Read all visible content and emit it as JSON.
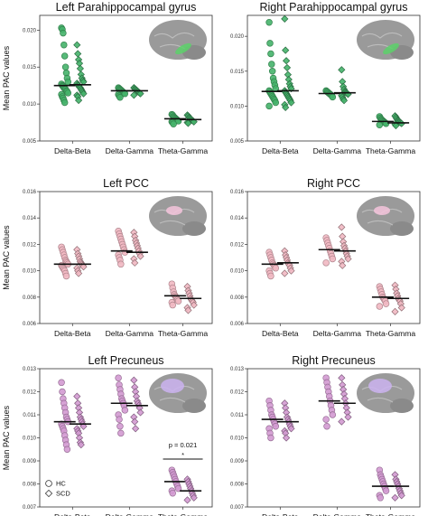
{
  "chart_data": [
    {
      "type": "scatter",
      "title": "Left Parahippocampal gyrus",
      "ylabel": "Mean PAC values",
      "ylim": [
        0.005,
        0.022
      ],
      "yticks": [
        "0.005",
        "0.010",
        "0.015",
        "0.020"
      ],
      "yticks_values": [
        0.005,
        0.01,
        0.015,
        0.02
      ],
      "categories": [
        "Delta-Beta",
        "Delta-Gamma",
        "Theta-Gamma"
      ],
      "color": "#45b36a",
      "brain_highlight": "#5cd16a",
      "series": [
        {
          "name": "HC",
          "marker": "circle",
          "means": [
            0.0125,
            0.0118,
            0.008
          ],
          "points": [
            [
              0.0203,
              0.0201,
              0.0196,
              0.018,
              0.0165,
              0.015,
              0.0142,
              0.0135,
              0.013,
              0.0127,
              0.0125,
              0.0124,
              0.0122,
              0.0121,
              0.012,
              0.0118,
              0.0117,
              0.0115,
              0.0113,
              0.011,
              0.0108,
              0.0105,
              0.0102
            ],
            [
              0.0122,
              0.0121,
              0.012,
              0.0119,
              0.0118,
              0.0117,
              0.0116,
              0.0115,
              0.0114,
              0.0113,
              0.0111,
              0.0109
            ],
            [
              0.0086,
              0.0085,
              0.0083,
              0.0082,
              0.0081,
              0.008,
              0.0079,
              0.0078,
              0.0077,
              0.0076,
              0.0075,
              0.0073
            ]
          ]
        },
        {
          "name": "SCD",
          "marker": "diamond",
          "means": [
            0.0126,
            0.0118,
            0.0079
          ],
          "points": [
            [
              0.018,
              0.0168,
              0.016,
              0.0155,
              0.0148,
              0.014,
              0.0135,
              0.0132,
              0.013,
              0.0128,
              0.0126,
              0.0125,
              0.0123,
              0.0122,
              0.012,
              0.0118,
              0.0116,
              0.0114,
              0.0112,
              0.011,
              0.0105
            ],
            [
              0.0122,
              0.0121,
              0.012,
              0.0119,
              0.0118,
              0.0117,
              0.0116,
              0.0115,
              0.0114,
              0.0112
            ],
            [
              0.0085,
              0.0084,
              0.0082,
              0.0081,
              0.008,
              0.0079,
              0.0078,
              0.0077,
              0.0076,
              0.0075,
              0.0074
            ]
          ]
        }
      ]
    },
    {
      "type": "scatter",
      "title": "Right Parahippocampal gyrus",
      "ylabel": "",
      "ylim": [
        0.005,
        0.023
      ],
      "yticks": [
        "0.005",
        "0.010",
        "0.015",
        "0.020"
      ],
      "yticks_values": [
        0.005,
        0.01,
        0.015,
        0.02
      ],
      "categories": [
        "Delta-Beta",
        "Delta-Gamma",
        "Theta-Gamma"
      ],
      "color": "#45b36a",
      "brain_highlight": "#5cd16a",
      "series": [
        {
          "name": "HC",
          "marker": "circle",
          "means": [
            0.0121,
            0.0118,
            0.0078
          ],
          "points": [
            [
              0.022,
              0.019,
              0.0175,
              0.016,
              0.015,
              0.014,
              0.0135,
              0.013,
              0.0125,
              0.0122,
              0.012,
              0.0118,
              0.0116,
              0.0114,
              0.0112,
              0.011,
              0.0108,
              0.0105,
              0.01
            ],
            [
              0.0122,
              0.0121,
              0.012,
              0.0119,
              0.0118,
              0.0117,
              0.0116,
              0.0115,
              0.0113
            ],
            [
              0.0085,
              0.0083,
              0.0081,
              0.008,
              0.0079,
              0.0078,
              0.0077,
              0.0076,
              0.0075,
              0.0073
            ]
          ]
        },
        {
          "name": "SCD",
          "marker": "diamond",
          "means": [
            0.0122,
            0.0119,
            0.0076
          ],
          "points": [
            [
              0.0225,
              0.018,
              0.0165,
              0.0155,
              0.0145,
              0.0138,
              0.0132,
              0.0128,
              0.0125,
              0.0122,
              0.012,
              0.0118,
              0.0116,
              0.0114,
              0.0112,
              0.011,
              0.0108,
              0.0105,
              0.0102,
              0.0098
            ],
            [
              0.0152,
              0.0135,
              0.0128,
              0.0124,
              0.0121,
              0.012,
              0.0119,
              0.0118,
              0.0117,
              0.0115,
              0.0113,
              0.011,
              0.0108
            ],
            [
              0.0086,
              0.0084,
              0.0082,
              0.008,
              0.0079,
              0.0078,
              0.0077,
              0.0076,
              0.0075,
              0.0074,
              0.0072
            ]
          ]
        }
      ]
    },
    {
      "type": "scatter",
      "title": "Left PCC",
      "ylabel": "Mean PAC values",
      "ylim": [
        0.006,
        0.016
      ],
      "yticks": [
        "0.006",
        "0.008",
        "0.010",
        "0.012",
        "0.014",
        "0.016"
      ],
      "yticks_values": [
        0.006,
        0.008,
        0.01,
        0.012,
        0.014,
        0.016
      ],
      "categories": [
        "Delta-Beta",
        "Delta-Gamma",
        "Theta-Gamma"
      ],
      "color": "#f1b8c2",
      "brain_highlight": "#f4c4dc",
      "series": [
        {
          "name": "HC",
          "marker": "circle",
          "means": [
            0.0105,
            0.0115,
            0.0081
          ],
          "points": [
            [
              0.0118,
              0.0116,
              0.0114,
              0.0112,
              0.011,
              0.0108,
              0.0107,
              0.0106,
              0.0105,
              0.0104,
              0.0103,
              0.0102,
              0.0101,
              0.01,
              0.0098,
              0.0096
            ],
            [
              0.013,
              0.0128,
              0.0126,
              0.0124,
              0.0122,
              0.012,
              0.0118,
              0.0116,
              0.0114,
              0.0112,
              0.011,
              0.0108,
              0.0105
            ],
            [
              0.009,
              0.0087,
              0.0084,
              0.0082,
              0.0081,
              0.008,
              0.0079,
              0.0078,
              0.0077,
              0.0076,
              0.0074
            ]
          ]
        },
        {
          "name": "SCD",
          "marker": "diamond",
          "means": [
            0.0105,
            0.0114,
            0.0079
          ],
          "points": [
            [
              0.0116,
              0.0113,
              0.0111,
              0.0109,
              0.0107,
              0.0106,
              0.0105,
              0.0104,
              0.0103,
              0.0102,
              0.01,
              0.0098
            ],
            [
              0.0129,
              0.0126,
              0.0123,
              0.0121,
              0.0119,
              0.0117,
              0.0115,
              0.0113,
              0.0111,
              0.0109,
              0.0106
            ],
            [
              0.0088,
              0.0085,
              0.0083,
              0.0081,
              0.0079,
              0.0078,
              0.0077,
              0.0076,
              0.0074,
              0.0072,
              0.007
            ]
          ]
        }
      ]
    },
    {
      "type": "scatter",
      "title": "Right PCC",
      "ylabel": "",
      "ylim": [
        0.006,
        0.016
      ],
      "yticks": [
        "0.006",
        "0.008",
        "0.010",
        "0.012",
        "0.014",
        "0.016"
      ],
      "yticks_values": [
        0.006,
        0.008,
        0.01,
        0.012,
        0.014,
        0.016
      ],
      "categories": [
        "Delta-Beta",
        "Delta-Gamma",
        "Theta-Gamma"
      ],
      "color": "#f1b8c2",
      "brain_highlight": "#f4c4dc",
      "series": [
        {
          "name": "HC",
          "marker": "circle",
          "means": [
            0.0105,
            0.0116,
            0.008
          ],
          "points": [
            [
              0.0114,
              0.0112,
              0.011,
              0.0108,
              0.0106,
              0.0105,
              0.0104,
              0.0103,
              0.0102,
              0.01,
              0.0098,
              0.0096
            ],
            [
              0.0125,
              0.0123,
              0.0121,
              0.0119,
              0.0117,
              0.0115,
              0.0113,
              0.0111,
              0.0109,
              0.0106
            ],
            [
              0.0088,
              0.0086,
              0.0084,
              0.0082,
              0.008,
              0.0079,
              0.0078,
              0.0077,
              0.0075,
              0.0073
            ]
          ]
        },
        {
          "name": "SCD",
          "marker": "diamond",
          "means": [
            0.0106,
            0.0115,
            0.0079
          ],
          "points": [
            [
              0.0115,
              0.0112,
              0.011,
              0.0108,
              0.0106,
              0.0105,
              0.0104,
              0.0102,
              0.01,
              0.0098
            ],
            [
              0.0133,
              0.0126,
              0.0122,
              0.0119,
              0.0117,
              0.0115,
              0.0113,
              0.0111,
              0.0109,
              0.0107,
              0.0104
            ],
            [
              0.0089,
              0.0086,
              0.0083,
              0.0081,
              0.0079,
              0.0078,
              0.0077,
              0.0075,
              0.0072,
              0.0069
            ]
          ]
        }
      ]
    },
    {
      "type": "scatter",
      "title": "Left Precuneus",
      "ylabel": "Mean PAC values",
      "ylim": [
        0.007,
        0.013
      ],
      "yticks": [
        "0.007",
        "0.008",
        "0.009",
        "0.010",
        "0.011",
        "0.012",
        "0.013"
      ],
      "yticks_values": [
        0.007,
        0.008,
        0.009,
        0.01,
        0.011,
        0.012,
        0.013
      ],
      "categories": [
        "Delta-Beta",
        "Delta-Gamma",
        "Theta-Gamma"
      ],
      "color": "#d39ad1",
      "brain_highlight": "#cbb3f0",
      "annotation": {
        "pvalue": "p = 0.021",
        "star": "*",
        "category_index": 2
      },
      "legend": {
        "hc": "HC",
        "scd": "SCD"
      },
      "series": [
        {
          "name": "HC",
          "marker": "circle",
          "means": [
            0.0107,
            0.0115,
            0.0081
          ],
          "points": [
            [
              0.0124,
              0.012,
              0.0117,
              0.0115,
              0.0113,
              0.0111,
              0.0109,
              0.0108,
              0.0107,
              0.0106,
              0.0105,
              0.0104,
              0.0103,
              0.0101,
              0.0099,
              0.0097,
              0.0095
            ],
            [
              0.0126,
              0.0123,
              0.0121,
              0.0119,
              0.0117,
              0.0116,
              0.0115,
              0.0114,
              0.0112,
              0.011,
              0.0108,
              0.0105,
              0.0102
            ],
            [
              0.0086,
              0.0085,
              0.0084,
              0.0083,
              0.0082,
              0.0081,
              0.008,
              0.0079,
              0.0078,
              0.0077,
              0.0076
            ]
          ]
        },
        {
          "name": "SCD",
          "marker": "diamond",
          "means": [
            0.0106,
            0.0114,
            0.0077
          ],
          "points": [
            [
              0.0118,
              0.0115,
              0.0113,
              0.0111,
              0.0109,
              0.0108,
              0.0107,
              0.0106,
              0.0105,
              0.0104,
              0.0103,
              0.0102,
              0.01,
              0.0098,
              0.0097
            ],
            [
              0.0125,
              0.0122,
              0.012,
              0.0118,
              0.0116,
              0.0115,
              0.0114,
              0.0113,
              0.0111,
              0.0109,
              0.0107,
              0.0104
            ],
            [
              0.0082,
              0.0081,
              0.008,
              0.0079,
              0.0078,
              0.0077,
              0.0076,
              0.0075,
              0.0074,
              0.0073
            ]
          ]
        }
      ]
    },
    {
      "type": "scatter",
      "title": "Right Precuneus",
      "ylabel": "",
      "ylim": [
        0.007,
        0.013
      ],
      "yticks": [
        "0.007",
        "0.008",
        "0.009",
        "0.010",
        "0.011",
        "0.012",
        "0.013"
      ],
      "yticks_values": [
        0.007,
        0.008,
        0.009,
        0.01,
        0.011,
        0.012,
        0.013
      ],
      "categories": [
        "Delta-Beta",
        "Delta-Gamma",
        "Theta-Gamma"
      ],
      "color": "#d39ad1",
      "brain_highlight": "#cbb3f0",
      "series": [
        {
          "name": "HC",
          "marker": "circle",
          "means": [
            0.0108,
            0.0116,
            0.0079
          ],
          "points": [
            [
              0.0116,
              0.0114,
              0.0112,
              0.011,
              0.0109,
              0.0108,
              0.0107,
              0.0106,
              0.0105,
              0.0104,
              0.0102,
              0.01
            ],
            [
              0.0126,
              0.0124,
              0.0122,
              0.012,
              0.0118,
              0.0116,
              0.0114,
              0.0112,
              0.011,
              0.0108,
              0.0105
            ],
            [
              0.0086,
              0.0084,
              0.0083,
              0.0082,
              0.0081,
              0.008,
              0.0079,
              0.0078,
              0.0077,
              0.0075,
              0.0074
            ]
          ]
        },
        {
          "name": "SCD",
          "marker": "diamond",
          "means": [
            0.0107,
            0.0115,
            0.0079
          ],
          "points": [
            [
              0.0115,
              0.0113,
              0.0111,
              0.0109,
              0.0108,
              0.0107,
              0.0106,
              0.0105,
              0.0104,
              0.0103,
              0.0102,
              0.01
            ],
            [
              0.0126,
              0.0123,
              0.0121,
              0.0119,
              0.0117,
              0.0115,
              0.0113,
              0.0111,
              0.0109,
              0.0107
            ],
            [
              0.0084,
              0.0082,
              0.0081,
              0.008,
              0.0079,
              0.0078,
              0.0077,
              0.0076,
              0.0075,
              0.0074
            ]
          ]
        }
      ]
    }
  ]
}
